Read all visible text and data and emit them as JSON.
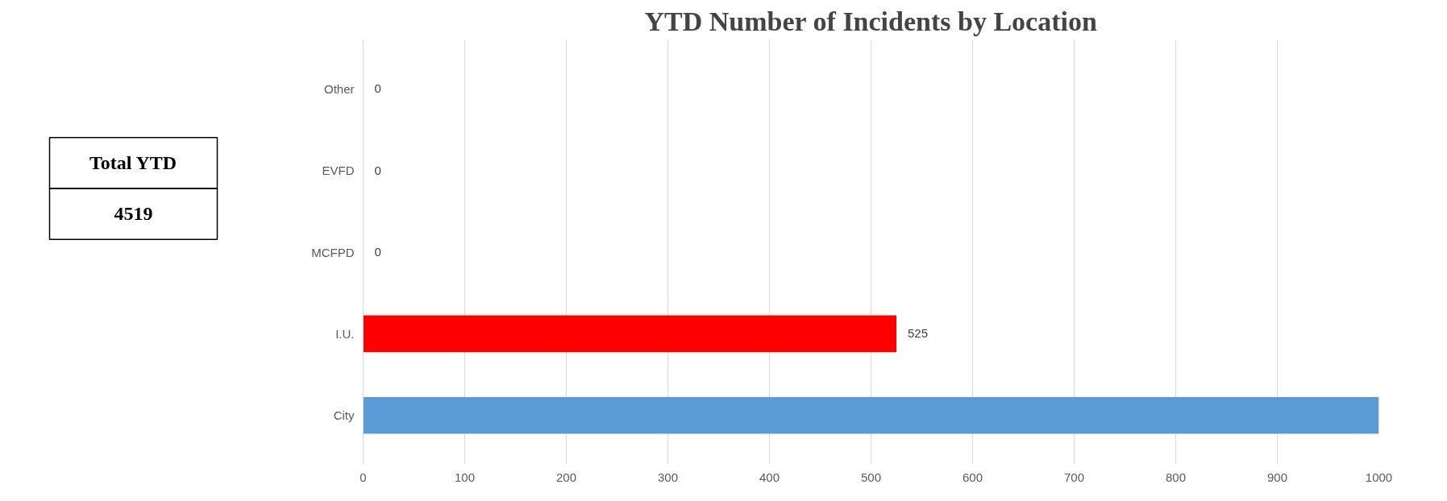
{
  "chart_data": [
    {
      "type": "other",
      "title": "Total YTD",
      "annotations": [
        "4519"
      ]
    },
    {
      "type": "bar",
      "title": "YTD Number of Incidents by Location",
      "orientation": "horizontal",
      "categories": [
        "Other",
        "EVFD",
        "MCFPD",
        "I.U.",
        "City"
      ],
      "values": [
        0,
        0,
        0,
        525,
        1000
      ],
      "colors": [
        "#5b9bd5",
        "#5b9bd5",
        "#5b9bd5",
        "#ff0000",
        "#5b9bd5"
      ],
      "value_labels": [
        "0",
        "0",
        "0",
        "525",
        null
      ],
      "xlim": [
        0,
        1000
      ],
      "xticks": [
        0,
        100,
        200,
        300,
        400,
        500,
        600,
        700,
        800,
        900,
        1000
      ],
      "grid": "x"
    }
  ]
}
